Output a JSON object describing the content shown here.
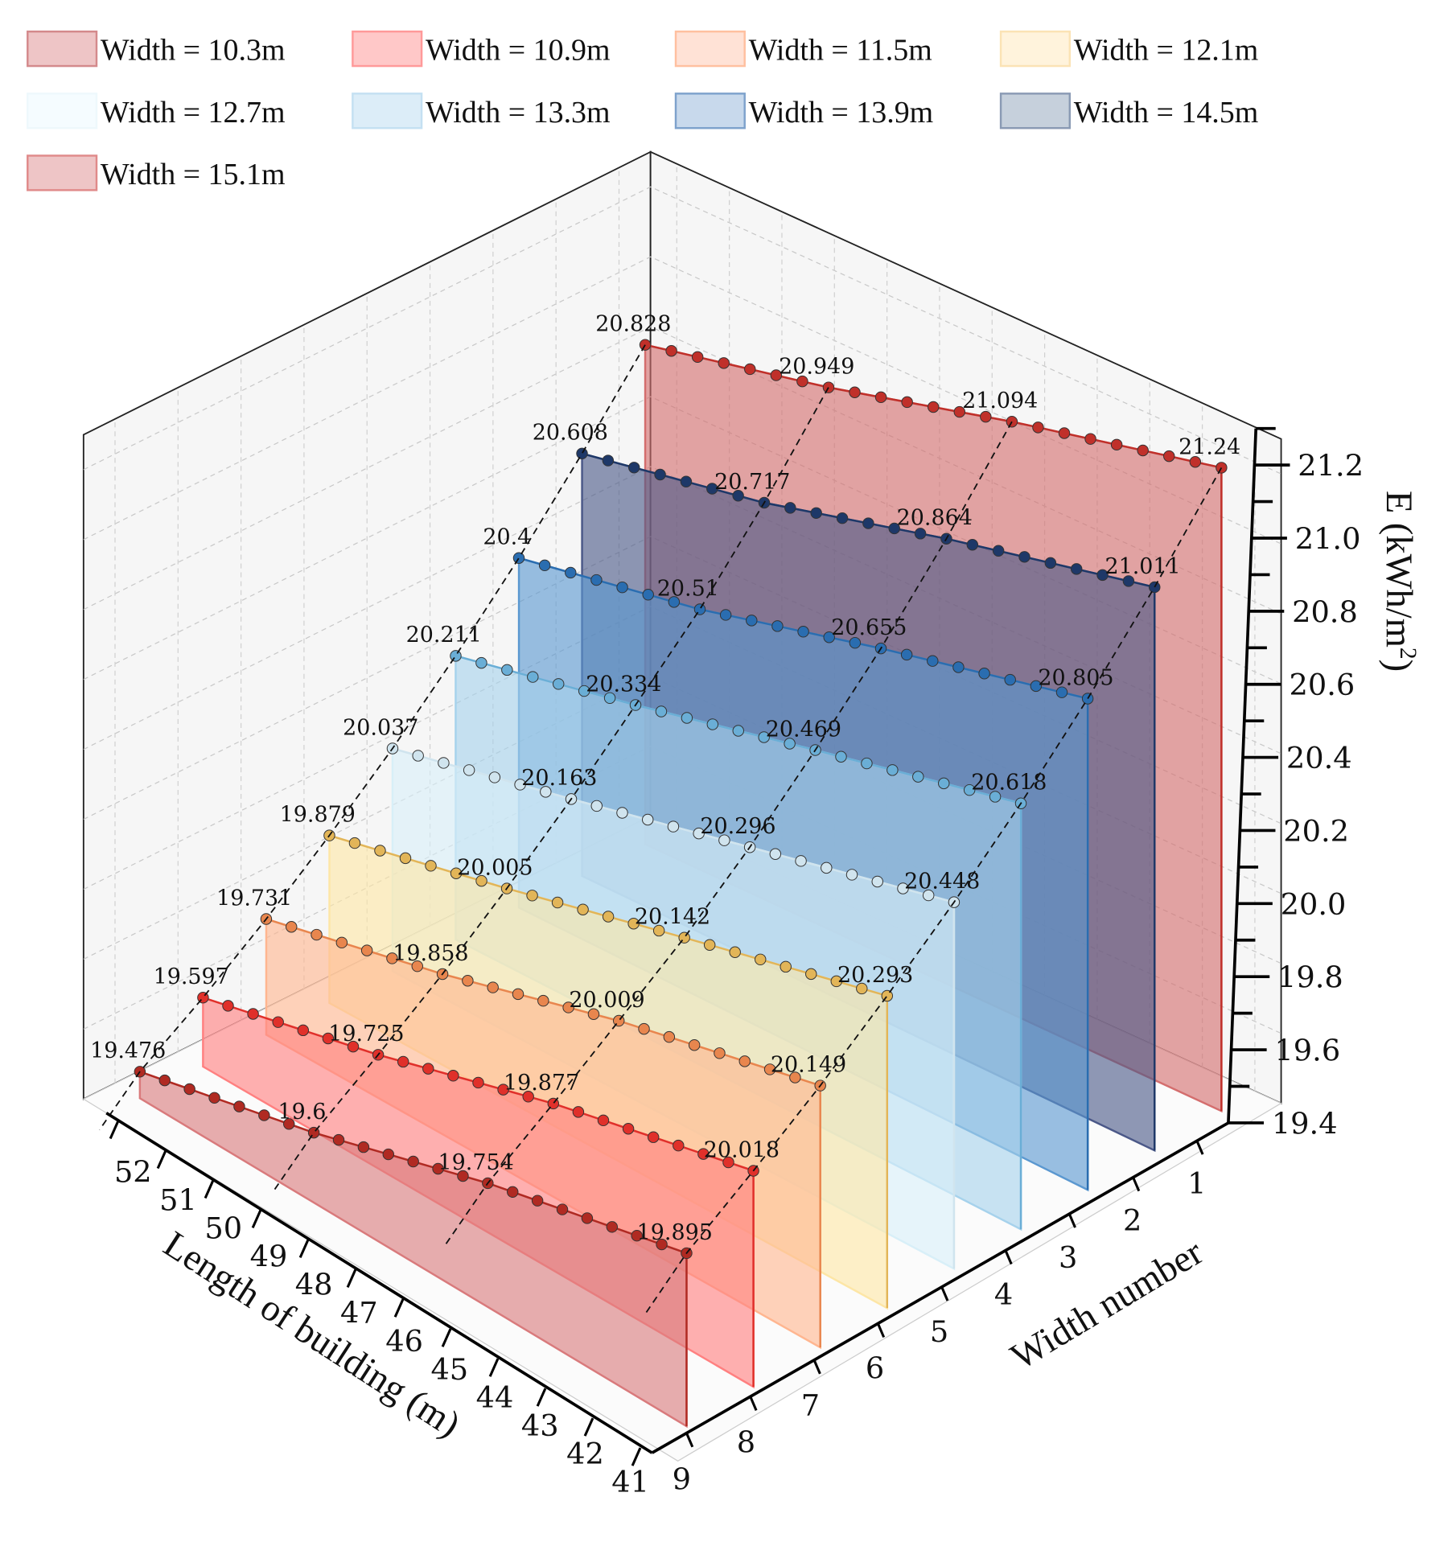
{
  "chart_data": {
    "type": "line",
    "subtype": "3d-waterfall",
    "xlabel": "Length of building (m)",
    "ylabel": "Width number",
    "zlabel": "E (kWh/m",
    "zlabel_sup": "2",
    "zlabel_close": ")",
    "length_ticks": [
      "52",
      "51",
      "50",
      "49",
      "48",
      "47",
      "46",
      "45",
      "44",
      "43",
      "42",
      "41"
    ],
    "width_ticks": [
      "9",
      "8",
      "7",
      "6",
      "5",
      "4",
      "3",
      "2",
      "1"
    ],
    "z_ticks": [
      "21.2",
      "21.0",
      "20.8",
      "20.6",
      "20.4",
      "20.2",
      "20.0",
      "19.8",
      "19.6",
      "19.4"
    ],
    "zlim": [
      19.4,
      21.3
    ],
    "xlim": [
      52,
      41
    ],
    "label_lengths": [
      52,
      48.5,
      45,
      41
    ],
    "series": [
      {
        "name": "Width = 10.3m",
        "width_number": 9,
        "labels": [
          "19.476",
          "19.6",
          "19.754",
          "19.895"
        ],
        "fill": "#d97a7c",
        "dot": "#b02a22"
      },
      {
        "name": "Width = 10.9m",
        "width_number": 8,
        "labels": [
          "19.597",
          "19.725",
          "19.877",
          "20.018"
        ],
        "fill": "#ff8080",
        "dot": "#e0302a"
      },
      {
        "name": "Width = 11.5m",
        "width_number": 7,
        "labels": [
          "19.731",
          "19.858",
          "20.009",
          "20.149"
        ],
        "fill": "#ffb690",
        "dot": "#e8864e"
      },
      {
        "name": "Width = 12.1m",
        "width_number": 6,
        "labels": [
          "19.879",
          "20.005",
          "20.142",
          "20.293"
        ],
        "fill": "#fde6a6",
        "dot": "#e2b558"
      },
      {
        "name": "Width = 12.7m",
        "width_number": 5,
        "labels": [
          "20.037",
          "20.163",
          "20.296",
          "20.448"
        ],
        "fill": "#d8eff8",
        "dot": "#d0e4ee"
      },
      {
        "name": "Width = 13.3m",
        "width_number": 4,
        "labels": [
          "20.211",
          "20.334",
          "20.469",
          "20.618"
        ],
        "fill": "#a6d2ec",
        "dot": "#6aaed6"
      },
      {
        "name": "Width = 13.9m",
        "width_number": 3,
        "labels": [
          "20.4",
          "20.51",
          "20.655",
          "20.805"
        ],
        "fill": "#5b98d0",
        "dot": "#2a6db0"
      },
      {
        "name": "Width = 14.5m",
        "width_number": 2,
        "labels": [
          "20.608",
          "20.717",
          "20.864",
          "21.011"
        ],
        "fill": "#4b5888",
        "dot": "#1e3868"
      },
      {
        "name": "Width = 15.1m",
        "width_number": 1,
        "labels": [
          "20.828",
          "20.949",
          "21.094",
          "21.24"
        ],
        "fill": "#d46e6e",
        "dot": "#c0302a"
      }
    ],
    "legend": {
      "placement": "top-left",
      "colors": [
        "#eec5c6",
        "#ffc8c8",
        "#ffe2d6",
        "#fff3dc",
        "#f5fcff",
        "#dcedf8",
        "#c8d9ec",
        "#c6d0dc",
        "#eec5c6"
      ],
      "borders": [
        "#d48a8c",
        "#ff9a9a",
        "#ffc0a0",
        "#fbe3b5",
        "#eef8fc",
        "#c4e0f2",
        "#7ea2cc",
        "#8a9ab4",
        "#e08a8a"
      ]
    }
  }
}
